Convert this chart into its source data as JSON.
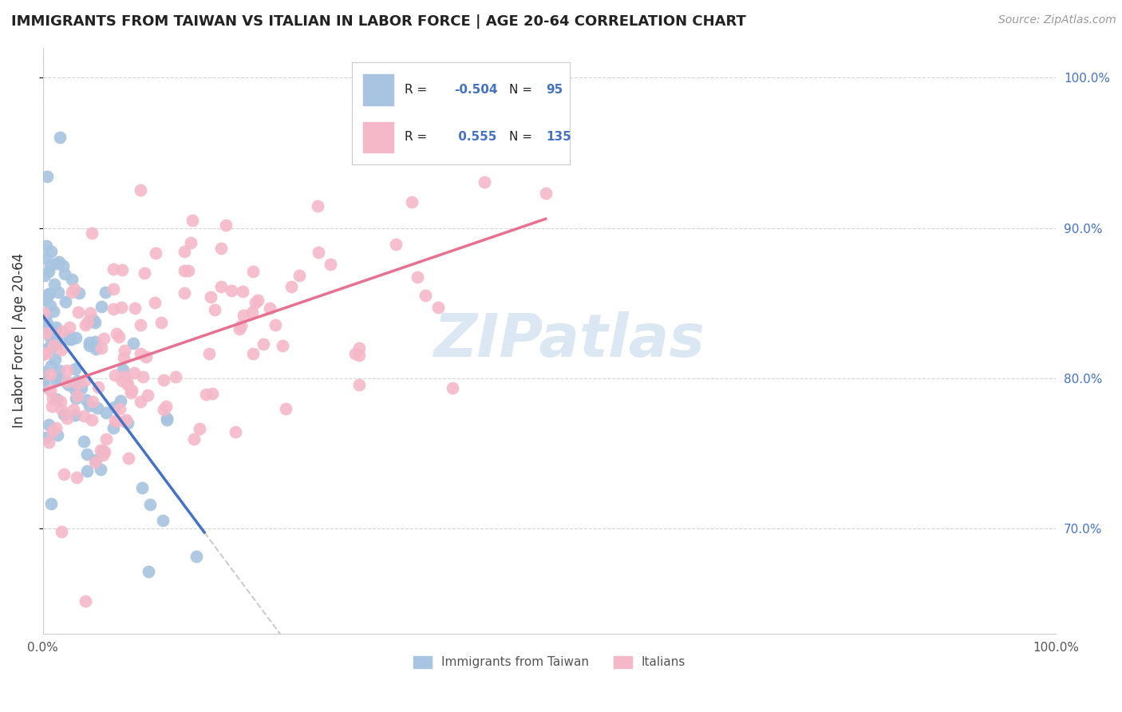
{
  "title": "IMMIGRANTS FROM TAIWAN VS ITALIAN IN LABOR FORCE | AGE 20-64 CORRELATION CHART",
  "source": "Source: ZipAtlas.com",
  "ylabel": "In Labor Force | Age 20-64",
  "taiwan_R": -0.504,
  "taiwan_N": 95,
  "italian_R": 0.555,
  "italian_N": 135,
  "taiwan_color": "#a8c4e0",
  "taiwan_line_color": "#4472c4",
  "italian_color": "#f4b8c8",
  "italian_line_color": "#e87090",
  "blue_text_color": "#4472c4",
  "right_yticks": [
    0.7,
    0.8,
    0.9,
    1.0
  ],
  "right_yticklabels": [
    "70.0%",
    "80.0%",
    "90.0%",
    "100.0%"
  ],
  "xmin": 0.0,
  "xmax": 1.0,
  "ymin": 0.63,
  "ymax": 1.02
}
